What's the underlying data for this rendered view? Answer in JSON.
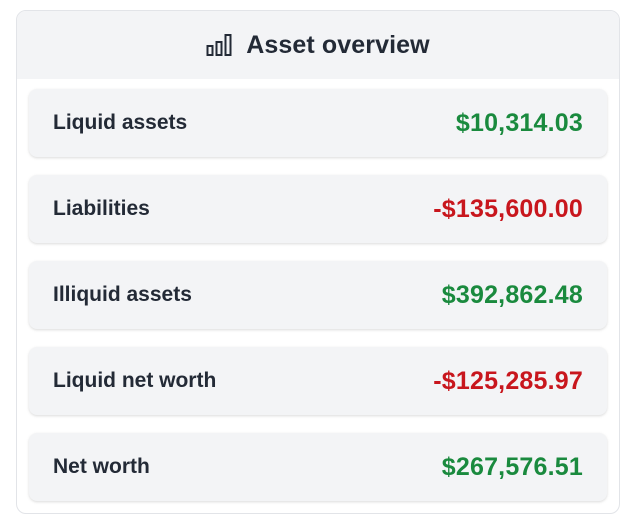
{
  "card": {
    "title": "Asset overview",
    "icon": "bar-chart-icon"
  },
  "colors": {
    "positive": "#1a8a3e",
    "negative": "#c8161d",
    "text": "#232a36",
    "row_background": "#f3f4f6"
  },
  "rows": [
    {
      "label": "Liquid assets",
      "value": "$10,314.03",
      "sign": "positive"
    },
    {
      "label": "Liabilities",
      "value": "-$135,600.00",
      "sign": "negative"
    },
    {
      "label": "Illiquid assets",
      "value": "$392,862.48",
      "sign": "positive"
    },
    {
      "label": "Liquid net worth",
      "value": "-$125,285.97",
      "sign": "negative"
    },
    {
      "label": "Net worth",
      "value": "$267,576.51",
      "sign": "positive"
    }
  ]
}
